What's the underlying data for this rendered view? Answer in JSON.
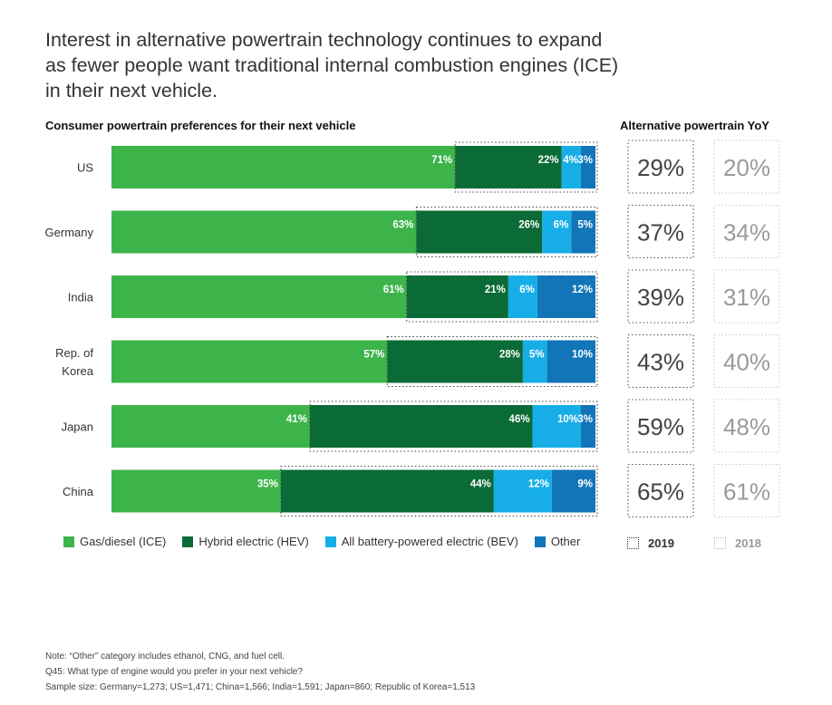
{
  "headline": "Interest in alternative powertrain technology continues to expand as fewer people want traditional internal combustion engines (ICE) in their next vehicle.",
  "chart_data": {
    "type": "bar",
    "orientation": "horizontal",
    "stacked": true,
    "title": "Consumer powertrain preferences for their next vehicle",
    "categories": [
      "US",
      "Germany",
      "India",
      "Rep. of Korea",
      "Japan",
      "China"
    ],
    "series": [
      {
        "name": "Gas/diesel (ICE)",
        "color": "#3cb44a",
        "values": [
          71,
          63,
          61,
          57,
          41,
          35
        ]
      },
      {
        "name": "Hybrid electric (HEV)",
        "color": "#0b6b36",
        "values": [
          22,
          26,
          21,
          28,
          46,
          44
        ]
      },
      {
        "name": "All battery-powered electric (BEV)",
        "color": "#17aee8",
        "values": [
          4,
          6,
          6,
          5,
          10,
          12
        ]
      },
      {
        "name": "Other",
        "color": "#1275b8",
        "values": [
          3,
          5,
          12,
          10,
          3,
          9
        ]
      }
    ],
    "xlim": [
      0,
      100
    ],
    "label_suffix": "%",
    "yoy": {
      "title": "Alternative powertrain YoY",
      "series": [
        {
          "name": "2019",
          "values": [
            29,
            37,
            39,
            43,
            59,
            65
          ]
        },
        {
          "name": "2018",
          "values": [
            20,
            34,
            31,
            40,
            48,
            61
          ]
        }
      ]
    },
    "legend_position": "bottom"
  },
  "notes": [
    "Note: “Other” category includes ethanol, CNG, and fuel cell.",
    "Q45: What type of engine would you prefer in your next vehicle?",
    "Sample size: Germany=1,273; US=1,471; China=1,566; India=1,591; Japan=860; Republic of Korea=1,513"
  ]
}
